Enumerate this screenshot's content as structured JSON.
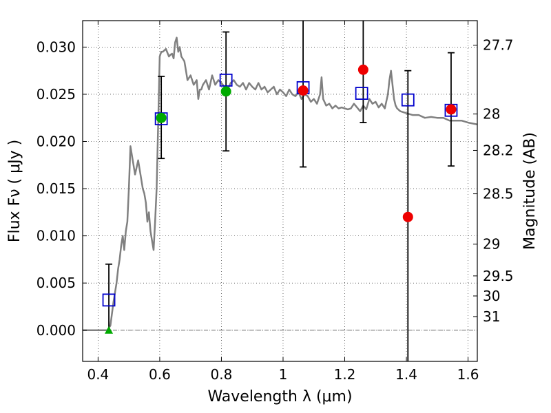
{
  "chart_data": {
    "type": "scatter",
    "xlabel": "Wavelength  λ (μm)",
    "ylabel": "Flux  Fν  ( μJy )",
    "y2label": "Magnitude (AB)",
    "xlim": [
      0.35,
      1.63
    ],
    "ylim": [
      -0.0033,
      0.0328
    ],
    "grid": true,
    "x_ticks": [
      0.4,
      0.6,
      0.8,
      1.0,
      1.2,
      1.4,
      1.6
    ],
    "x_tick_labels": [
      "0.4",
      "0.6",
      "0.8",
      "1",
      "1.2",
      "1.4",
      "1.6"
    ],
    "y_ticks": [
      0.0,
      0.005,
      0.01,
      0.015,
      0.02,
      0.025,
      0.03
    ],
    "y_tick_labels": [
      "0.000",
      "0.005",
      "0.010",
      "0.015",
      "0.020",
      "0.025",
      "0.030"
    ],
    "mag_ticks": [
      27.7,
      28,
      28.2,
      28.5,
      29,
      29.5,
      30,
      31
    ],
    "mag_tick_labels": [
      "27.7",
      "28",
      "28.2",
      "28.5",
      "29",
      "29.5",
      "30",
      "31"
    ],
    "zero_line": 0.0,
    "colors": {
      "model": "#808080",
      "model_points": "#0000cc",
      "detections": "#00aa00",
      "measurements": "#ee0000",
      "errorbars": "#000000",
      "zero_line": "#333333"
    },
    "series": [
      {
        "kind": "line",
        "x": [
          0.35,
          0.43,
          0.44,
          0.45,
          0.46,
          0.465,
          0.47,
          0.475,
          0.48,
          0.485,
          0.49,
          0.495,
          0.5,
          0.505,
          0.51,
          0.52,
          0.53,
          0.54,
          0.545,
          0.55,
          0.555,
          0.56,
          0.565,
          0.57,
          0.575,
          0.58,
          0.585,
          0.59,
          0.595,
          0.6,
          0.605,
          0.61,
          0.62,
          0.63,
          0.635,
          0.64,
          0.645,
          0.65,
          0.655,
          0.66,
          0.665,
          0.67,
          0.68,
          0.685,
          0.69,
          0.7,
          0.71,
          0.72,
          0.725,
          0.73,
          0.735,
          0.74,
          0.75,
          0.76,
          0.77,
          0.78,
          0.79,
          0.8,
          0.81,
          0.82,
          0.83,
          0.84,
          0.85,
          0.86,
          0.87,
          0.88,
          0.89,
          0.9,
          0.91,
          0.92,
          0.93,
          0.94,
          0.95,
          0.96,
          0.97,
          0.98,
          0.99,
          1.0,
          1.01,
          1.02,
          1.03,
          1.04,
          1.05,
          1.06,
          1.07,
          1.08,
          1.09,
          1.1,
          1.11,
          1.12,
          1.125,
          1.13,
          1.14,
          1.15,
          1.16,
          1.17,
          1.18,
          1.19,
          1.2,
          1.21,
          1.22,
          1.23,
          1.24,
          1.25,
          1.26,
          1.27,
          1.28,
          1.29,
          1.3,
          1.31,
          1.32,
          1.33,
          1.34,
          1.345,
          1.35,
          1.355,
          1.36,
          1.365,
          1.37,
          1.38,
          1.4,
          1.42,
          1.44,
          1.46,
          1.48,
          1.5,
          1.52,
          1.54,
          1.56,
          1.58,
          1.6,
          1.63
        ],
        "y": [
          0.0,
          0.0,
          0.0005,
          0.003,
          0.005,
          0.0065,
          0.0075,
          0.009,
          0.01,
          0.0085,
          0.0105,
          0.0115,
          0.015,
          0.0195,
          0.0185,
          0.0165,
          0.018,
          0.016,
          0.015,
          0.0145,
          0.0135,
          0.0115,
          0.0125,
          0.0105,
          0.0095,
          0.0085,
          0.0115,
          0.015,
          0.022,
          0.029,
          0.0295,
          0.0295,
          0.0298,
          0.029,
          0.0292,
          0.0293,
          0.0288,
          0.0305,
          0.031,
          0.0295,
          0.03,
          0.029,
          0.0285,
          0.0275,
          0.0265,
          0.027,
          0.026,
          0.0265,
          0.0245,
          0.0255,
          0.0255,
          0.026,
          0.0265,
          0.0255,
          0.027,
          0.026,
          0.0265,
          0.0262,
          0.0258,
          0.0255,
          0.0262,
          0.0265,
          0.026,
          0.0258,
          0.0262,
          0.0255,
          0.0262,
          0.0258,
          0.0255,
          0.0262,
          0.0255,
          0.0258,
          0.0252,
          0.0255,
          0.0258,
          0.025,
          0.0255,
          0.0252,
          0.0248,
          0.0255,
          0.025,
          0.0248,
          0.0252,
          0.0245,
          0.025,
          0.0248,
          0.0242,
          0.0245,
          0.024,
          0.025,
          0.0268,
          0.0245,
          0.0238,
          0.024,
          0.0235,
          0.0238,
          0.0235,
          0.0236,
          0.0235,
          0.0234,
          0.0235,
          0.024,
          0.0236,
          0.0232,
          0.0238,
          0.0234,
          0.0245,
          0.024,
          0.0242,
          0.0236,
          0.024,
          0.0235,
          0.025,
          0.0265,
          0.0275,
          0.026,
          0.0245,
          0.0238,
          0.0235,
          0.0232,
          0.023,
          0.0228,
          0.0228,
          0.0225,
          0.0226,
          0.0225,
          0.0225,
          0.0222,
          0.0222,
          0.0222,
          0.022,
          0.0218
        ]
      },
      {
        "kind": "points",
        "marker": "square",
        "x": [
          0.435,
          0.605,
          0.815,
          1.065,
          1.255,
          1.405,
          1.545
        ],
        "y": [
          0.0032,
          0.0224,
          0.0265,
          0.0257,
          0.0251,
          0.0244,
          0.0233
        ]
      },
      {
        "kind": "points",
        "marker": "circle",
        "x": [
          0.605,
          0.815
        ],
        "y": [
          0.0225,
          0.0253
        ]
      },
      {
        "kind": "points",
        "marker": "triangle",
        "x": [
          0.435
        ],
        "y": [
          0.0
        ]
      },
      {
        "kind": "points",
        "marker": "circle",
        "x": [
          1.065,
          1.26,
          1.405,
          1.545
        ],
        "y": [
          0.0254,
          0.0276,
          0.012,
          0.0234
        ]
      },
      {
        "kind": "errorbars",
        "x": [
          0.435,
          0.605,
          0.815,
          1.065,
          1.26,
          1.405,
          1.545
        ],
        "y_low": [
          0.0,
          0.0182,
          0.019,
          0.0173,
          0.022,
          -0.0033,
          0.0174
        ],
        "y_high": [
          0.007,
          0.0269,
          0.0316,
          0.0328,
          0.0328,
          0.0275,
          0.0294
        ],
        "cap_high": [
          true,
          true,
          true,
          false,
          false,
          true,
          true
        ],
        "cap_low": [
          false,
          true,
          true,
          true,
          true,
          false,
          true
        ]
      }
    ]
  }
}
